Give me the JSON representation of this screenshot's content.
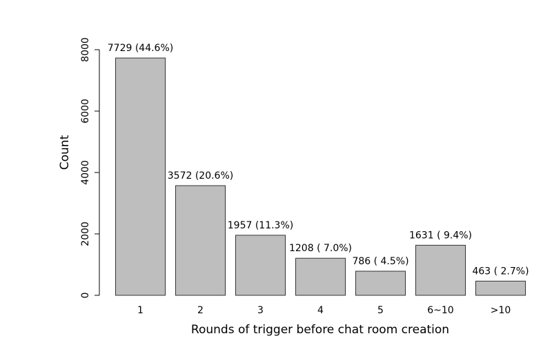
{
  "chart_data": {
    "type": "bar",
    "title": "",
    "xlabel": "Rounds of trigger before chat room creation",
    "ylabel": "Count",
    "categories": [
      "1",
      "2",
      "3",
      "4",
      "5",
      "6~10",
      ">10"
    ],
    "values": [
      7729,
      3572,
      1957,
      1208,
      786,
      1631,
      463
    ],
    "data_labels": [
      "7729 (44.6%)",
      "3572 (20.6%)",
      "1957 (11.3%)",
      "1208 ( 7.0%)",
      "786 ( 4.5%)",
      "1631 ( 9.4%)",
      "463 ( 2.7%)"
    ],
    "yticks": [
      0,
      2000,
      4000,
      6000,
      8000
    ],
    "ylim": [
      0,
      8000
    ],
    "grid": false,
    "legend": "none",
    "bar_color": "#bebebe",
    "bar_edge_color": "#333333"
  }
}
